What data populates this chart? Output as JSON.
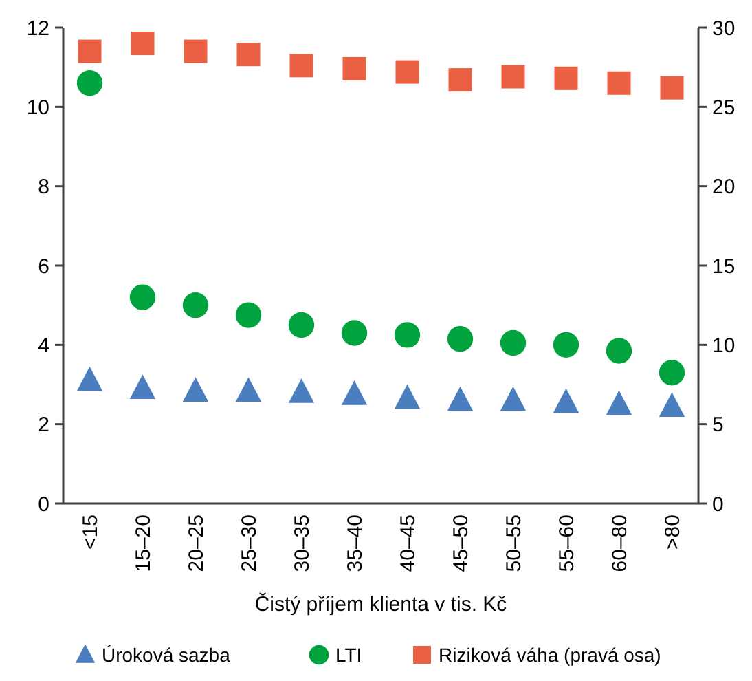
{
  "chart_data": {
    "type": "scatter",
    "xlabel": "Čistý příjem klienta v tis. Kč",
    "categories": [
      "<15",
      "15–20",
      "20–25",
      "25–30",
      "30–35",
      "35–40",
      "40–45",
      "45–50",
      "50–55",
      "55–60",
      "60–80",
      ">80"
    ],
    "ylim": [
      0,
      12
    ],
    "yticks": [
      0,
      2,
      4,
      6,
      8,
      10,
      12
    ],
    "y2lim": [
      0,
      30
    ],
    "y2ticks": [
      0,
      5,
      10,
      15,
      20,
      25,
      30
    ],
    "grid": false,
    "legend": "bottom",
    "series": [
      {
        "name": "Úroková sazba",
        "color": "#4a7ebf",
        "marker": "triangle",
        "values": [
          3.1,
          2.9,
          2.83,
          2.83,
          2.8,
          2.75,
          2.65,
          2.6,
          2.6,
          2.55,
          2.5,
          2.45
        ]
      },
      {
        "name": "LTI",
        "color": "#00a33e",
        "marker": "circle",
        "values": [
          10.6,
          5.2,
          5.0,
          4.75,
          4.5,
          4.3,
          4.25,
          4.15,
          4.05,
          4.0,
          3.85,
          3.3
        ]
      },
      {
        "name": "Riziková váha (pravá osa)",
        "color": "#e96042",
        "marker": "square",
        "axis": "y2",
        "values": [
          28.5,
          29.0,
          28.5,
          28.3,
          27.6,
          27.4,
          27.2,
          26.7,
          26.9,
          26.8,
          26.5,
          26.2
        ]
      }
    ]
  }
}
